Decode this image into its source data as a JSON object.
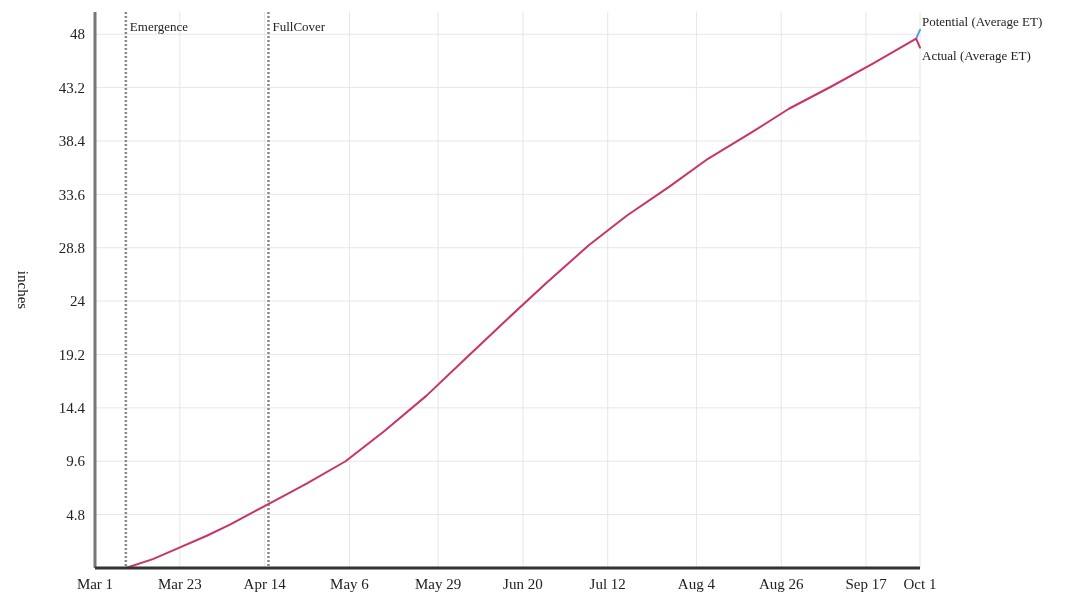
{
  "chart_data": {
    "type": "line",
    "ylabel": "inches",
    "xlim": [
      "--03-01",
      "--10-01"
    ],
    "xticks": [
      {
        "value": "--03-01",
        "label": "Mar 1"
      },
      {
        "value": "--03-23",
        "label": "Mar 23"
      },
      {
        "value": "--04-14",
        "label": "Apr 14"
      },
      {
        "value": "--05-06",
        "label": "May 6"
      },
      {
        "value": "--05-29",
        "label": "May 29"
      },
      {
        "value": "--06-20",
        "label": "Jun 20"
      },
      {
        "value": "--07-12",
        "label": "Jul 12"
      },
      {
        "value": "--08-04",
        "label": "Aug 4"
      },
      {
        "value": "--08-26",
        "label": "Aug 26"
      },
      {
        "value": "--09-17",
        "label": "Sep 17"
      },
      {
        "value": "--10-01",
        "label": "Oct 1"
      }
    ],
    "ylim": [
      0,
      50
    ],
    "yticks": [
      4.8,
      9.6,
      14.4,
      19.2,
      24,
      28.8,
      33.6,
      38.4,
      43.2,
      48
    ],
    "grid": true,
    "marker": "none",
    "line_style": "solid",
    "x": [
      "--03-09",
      "--03-16",
      "--03-22",
      "--03-30",
      "--04-05",
      "--04-12",
      "--04-18",
      "--04-25",
      "--05-05",
      "--05-15",
      "--05-26",
      "--06-05",
      "--06-16",
      "--06-26",
      "--07-07",
      "--07-17",
      "--07-28",
      "--08-07",
      "--08-18",
      "--08-28",
      "--09-08",
      "--09-19",
      "--09-30",
      "--10-01"
    ],
    "series": [
      {
        "name": "Potential (Average ET)",
        "color": "#5aa0e0",
        "values": [
          null,
          null,
          null,
          null,
          null,
          null,
          null,
          null,
          null,
          null,
          null,
          null,
          null,
          null,
          null,
          null,
          null,
          null,
          null,
          null,
          null,
          null,
          47.6,
          48.4
        ]
      },
      {
        "name": "Actual (Average ET)",
        "color": "#c8336a",
        "values": [
          0,
          0.8,
          1.7,
          2.9,
          3.9,
          5.2,
          6.3,
          7.6,
          9.6,
          12.3,
          15.5,
          18.8,
          22.4,
          25.6,
          29.0,
          31.7,
          34.3,
          36.8,
          39.1,
          41.3,
          43.3,
          45.4,
          47.6,
          46.8
        ]
      }
    ],
    "ref_lines": [
      {
        "axis": "x",
        "value": "--03-09",
        "label": "Emergence",
        "color": "#888888",
        "line_style": "dotted"
      },
      {
        "axis": "x",
        "value": "--04-15",
        "label": "FullCover",
        "color": "#888888",
        "line_style": "dotted"
      }
    ]
  }
}
